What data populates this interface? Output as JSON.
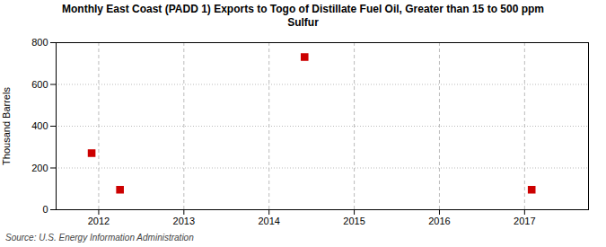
{
  "chart_data": {
    "type": "scatter",
    "title": "Monthly East Coast (PADD 1) Exports to Togo of Distillate Fuel Oil, Greater than 15 to 500 ppm\nSulfur",
    "ylabel": "Thousand Barrels",
    "source": "Source: U.S. Energy Information Administration",
    "x": [
      2011.917,
      2012.25,
      2014.417,
      2017.083
    ],
    "values": [
      271,
      96,
      731,
      96
    ],
    "color": "#cc0000",
    "marker": "square",
    "xlim": [
      2011.5,
      2017.75
    ],
    "ylim": [
      0,
      800
    ],
    "xticks": [
      2012,
      2013,
      2014,
      2015,
      2016,
      2017
    ],
    "yticks": [
      0,
      200,
      400,
      600,
      800
    ],
    "grid": true
  }
}
